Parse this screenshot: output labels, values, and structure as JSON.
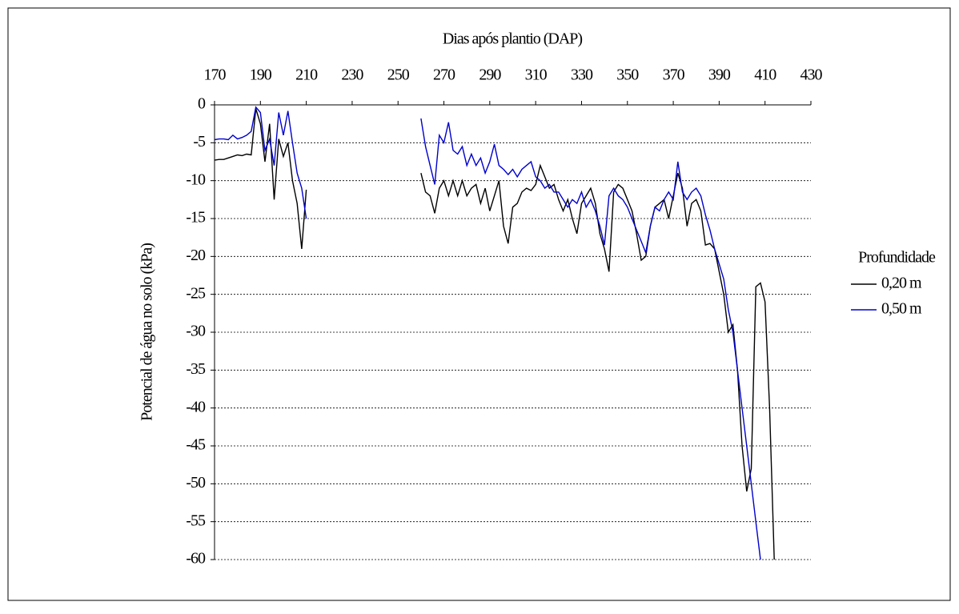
{
  "chart_data": {
    "type": "line",
    "title": "Dias após plantio (DAP)",
    "y_label": "Potencial de água no solo (kPa)",
    "legend_title": "Profundidade",
    "legend": "right",
    "grid": true,
    "xlim": [
      170,
      430
    ],
    "xticks": [
      170,
      190,
      210,
      230,
      250,
      270,
      290,
      310,
      330,
      350,
      370,
      390,
      410,
      430
    ],
    "ylim": [
      -60,
      0
    ],
    "yticks": [
      0,
      -5,
      -10,
      -15,
      -20,
      -25,
      -30,
      -35,
      -40,
      -45,
      -50,
      -55,
      -60
    ],
    "x": [
      170,
      172,
      174,
      176,
      178,
      180,
      182,
      184,
      186,
      188,
      190,
      192,
      194,
      196,
      198,
      200,
      202,
      204,
      206,
      208,
      210,
      235,
      260,
      262,
      264,
      266,
      268,
      270,
      272,
      274,
      276,
      278,
      280,
      282,
      284,
      286,
      288,
      290,
      292,
      294,
      296,
      298,
      300,
      302,
      304,
      306,
      308,
      310,
      312,
      314,
      316,
      318,
      320,
      322,
      324,
      326,
      328,
      330,
      332,
      334,
      336,
      338,
      340,
      342,
      344,
      346,
      348,
      350,
      352,
      354,
      356,
      358,
      360,
      362,
      364,
      366,
      368,
      370,
      372,
      374,
      376,
      378,
      380,
      382,
      384,
      386,
      388,
      390,
      392,
      394,
      396,
      398,
      400,
      402,
      404,
      406,
      408,
      410,
      412,
      414
    ],
    "series": [
      {
        "name": "0,20 m",
        "color": "#000000",
        "values": [
          -7.3,
          -7.2,
          -7.2,
          -7.0,
          -6.8,
          -6.6,
          -6.7,
          -6.5,
          -6.6,
          -0.5,
          -2.5,
          -7.5,
          -2.5,
          -12.5,
          -4.5,
          -6.8,
          -5,
          -10,
          -13,
          -19,
          -11.2,
          null,
          -9,
          -11.5,
          -12,
          -14.3,
          -11,
          -10,
          -12,
          -10,
          -12,
          -10,
          -12,
          -11,
          -10.5,
          -13,
          -11,
          -14,
          -12,
          -10,
          -16,
          -18.3,
          -13.5,
          -13,
          -11.5,
          -11,
          -11.3,
          -10.5,
          -8,
          -9.5,
          -11,
          -10.5,
          -12.5,
          -14,
          -12.5,
          -15,
          -17,
          -13,
          -12,
          -11,
          -13,
          -17,
          -19,
          -22,
          -11.5,
          -10.5,
          -11,
          -12.5,
          -14,
          -17,
          -20.5,
          -20,
          -16,
          -13.5,
          -13,
          -12.5,
          -15,
          -12,
          -9,
          -11,
          -16,
          -13,
          -12.5,
          -14,
          -18.5,
          -18.3,
          -19,
          -22,
          -25,
          -30,
          -29,
          -35,
          -45,
          -51,
          -48,
          -24,
          -23.5,
          -26,
          -40,
          -60
        ]
      },
      {
        "name": "0,50 m",
        "color": "#0000cc",
        "values": [
          -4.6,
          -4.5,
          -4.5,
          -4.6,
          -4,
          -4.5,
          -4.3,
          -4,
          -3.5,
          -0.3,
          -1,
          -6,
          -4.5,
          -8,
          -1,
          -4,
          -0.8,
          -5,
          -9,
          -11,
          -15,
          null,
          -1.8,
          -5.5,
          -8,
          -10.5,
          -4,
          -5,
          -2.3,
          -6,
          -6.5,
          -5.5,
          -8,
          -6.5,
          -8,
          -7,
          -9,
          -7.5,
          -5.2,
          -8,
          -8.5,
          -9.2,
          -8.5,
          -9.5,
          -8.5,
          -8,
          -7.5,
          -9.5,
          -10,
          -11,
          -10.5,
          -11.5,
          -11.5,
          -12.5,
          -13.5,
          -12.5,
          -13,
          -11.5,
          -13.5,
          -12.5,
          -14,
          -16,
          -18.5,
          -12,
          -11,
          -12,
          -12.5,
          -13.5,
          -15,
          -16.5,
          -18,
          -19.5,
          -16,
          -13.5,
          -14,
          -12.5,
          -11.5,
          -12.5,
          -7.5,
          -11.5,
          -12.5,
          -11.5,
          -11,
          -12,
          -14.5,
          -16.5,
          -19,
          -21,
          -23,
          -27,
          -30,
          -35,
          -40,
          -45,
          -50,
          -55,
          -60,
          null,
          null,
          null
        ]
      }
    ]
  }
}
